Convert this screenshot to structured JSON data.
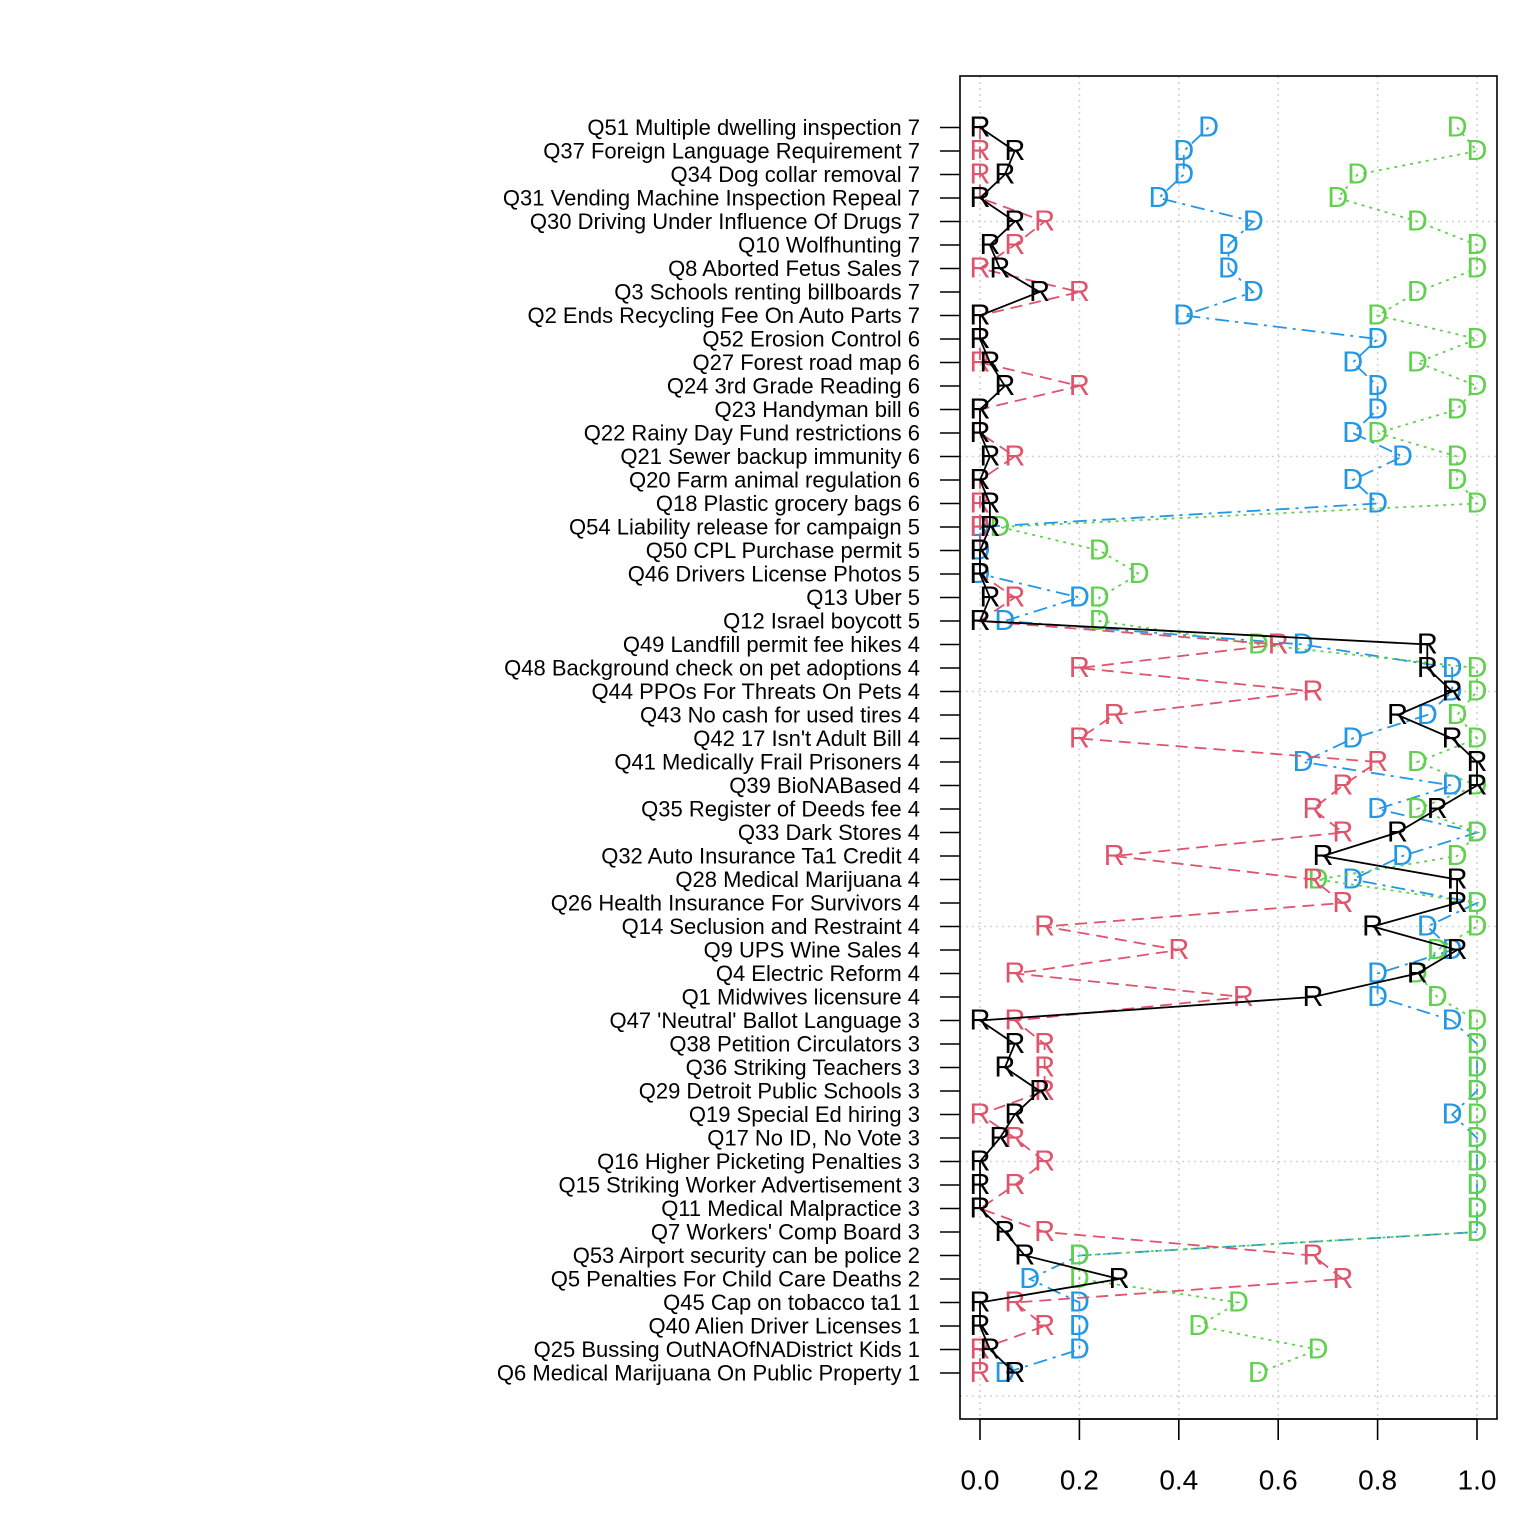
{
  "chart_data": {
    "type": "line",
    "title": "",
    "xlabel": "",
    "ylabel": "",
    "xlim": [
      0,
      1
    ],
    "x_ticks": [
      "0.0",
      "0.2",
      "0.4",
      "0.6",
      "0.8",
      "1.0"
    ],
    "grid": true,
    "legend": "none",
    "categories": [
      "Q51 Multiple dwelling inspection 7",
      "Q37 Foreign Language Requirement 7",
      "Q34 Dog collar removal 7",
      "Q31 Vending Machine Inspection Repeal 7",
      "Q30 Driving Under Influence Of Drugs 7",
      "Q10 Wolfhunting 7",
      "Q8 Aborted Fetus Sales 7",
      "Q3 Schools renting billboards 7",
      "Q2 Ends Recycling Fee On Auto Parts 7",
      "Q52 Erosion Control 6",
      "Q27 Forest road map 6",
      "Q24 3rd Grade Reading 6",
      "Q23 Handyman bill 6",
      "Q22 Rainy Day Fund restrictions 6",
      "Q21 Sewer backup immunity 6",
      "Q20 Farm animal regulation 6",
      "Q18 Plastic grocery bags 6",
      "Q54 Liability release for campaign 5",
      "Q50 CPL Purchase permit 5",
      "Q46 Drivers License Photos 5",
      "Q13 Uber 5",
      "Q12 Israel boycott 5",
      "Q49 Landfill permit fee hikes 4",
      "Q48 Background check on pet adoptions 4",
      "Q44 PPOs For Threats On Pets 4",
      "Q43 No cash for used tires 4",
      "Q42 17 Isn't Adult Bill 4",
      "Q41 Medically Frail Prisoners 4",
      "Q39 BioNABased 4",
      "Q35 Register of Deeds fee 4",
      "Q33 Dark Stores 4",
      "Q32 Auto Insurance Ta1 Credit 4",
      "Q28 Medical Marijuana 4",
      "Q26 Health Insurance For Survivors 4",
      "Q14 Seclusion and Restraint 4",
      "Q9 UPS Wine Sales 4",
      "Q4 Electric Reform 4",
      "Q1 Midwives licensure 4",
      "Q47 'Neutral' Ballot Language 3",
      "Q38 Petition Circulators 3",
      "Q36 Striking Teachers 3",
      "Q29 Detroit Public Schools 3",
      "Q19 Special Ed hiring 3",
      "Q17 No ID, No Vote 3",
      "Q16 Higher Picketing Penalties 3",
      "Q15 Striking Worker Advertisement 3",
      "Q11 Medical Malpractice 3",
      "Q7 Workers' Comp Board 3",
      "Q53 Airport security can be police 2",
      "Q5 Penalties For Child Care Deaths 2",
      "Q45 Cap on tobacco ta1 1",
      "Q40 Alien Driver Licenses 1",
      "Q25 Bussing OutNAOfNADistrict Kids 1",
      "Q6 Medical Marijuana On Public Property 1"
    ],
    "series": [
      {
        "marker": "R",
        "color": "#000000",
        "line": "solid",
        "values": [
          0,
          0.07,
          0.05,
          0,
          0.07,
          0.02,
          0.04,
          0.12,
          0,
          0,
          0.02,
          0.05,
          0,
          0,
          0.02,
          0,
          0.02,
          0.02,
          0,
          0,
          0.02,
          0,
          0.9,
          0.9,
          0.95,
          0.84,
          0.95,
          1.0,
          1.0,
          0.92,
          0.84,
          0.69,
          0.96,
          0.96,
          0.79,
          0.96,
          0.88,
          0.67,
          0,
          0.07,
          0.05,
          0.12,
          0.07,
          0.04,
          0,
          0,
          0,
          0.05,
          0.09,
          0.28,
          0,
          0,
          0.02,
          0.07
        ]
      },
      {
        "marker": "R",
        "color": "#DF536B",
        "line": "dashed",
        "values": [
          0,
          0,
          0,
          0,
          0.13,
          0.07,
          0,
          0.2,
          0,
          0,
          0,
          0.2,
          0,
          0,
          0.07,
          0,
          0,
          0,
          0,
          0,
          0.07,
          0,
          0.6,
          0.2,
          0.67,
          0.27,
          0.2,
          0.8,
          0.73,
          0.67,
          0.73,
          0.27,
          0.67,
          0.73,
          0.13,
          0.4,
          0.07,
          0.53,
          0.07,
          0.13,
          0.13,
          0.13,
          0,
          0.07,
          0.13,
          0.07,
          0,
          0.13,
          0.67,
          0.73,
          0.07,
          0.13,
          0,
          0
        ]
      },
      {
        "marker": "D",
        "color": "#2297E6",
        "line": "dotdash",
        "values": [
          0.46,
          0.41,
          0.41,
          0.36,
          0.55,
          0.5,
          0.5,
          0.55,
          0.41,
          0.8,
          0.75,
          0.8,
          0.8,
          0.75,
          0.85,
          0.75,
          0.8,
          0,
          0,
          0,
          0.2,
          0.05,
          0.65,
          0.95,
          0.95,
          0.9,
          0.75,
          0.65,
          0.95,
          0.8,
          1.0,
          0.85,
          0.75,
          1.0,
          0.9,
          0.95,
          0.8,
          0.8,
          0.95,
          1.0,
          1.0,
          1.0,
          0.95,
          1.0,
          1.0,
          1.0,
          1.0,
          1.0,
          0.2,
          0.1,
          0.2,
          0.2,
          0.2,
          0.05
        ]
      },
      {
        "marker": "D",
        "color": "#61D04F",
        "line": "dotted",
        "values": [
          0.96,
          1.0,
          0.76,
          0.72,
          0.88,
          1.0,
          1.0,
          0.88,
          0.8,
          1.0,
          0.88,
          1.0,
          0.96,
          0.8,
          0.96,
          0.96,
          1.0,
          0.04,
          0.24,
          0.32,
          0.24,
          0.24,
          0.56,
          1.0,
          1.0,
          0.96,
          1.0,
          0.88,
          1.0,
          0.88,
          1.0,
          0.96,
          0.68,
          1.0,
          1.0,
          0.92,
          0.88,
          0.92,
          1.0,
          1.0,
          1.0,
          1.0,
          1.0,
          1.0,
          1.0,
          1.0,
          1.0,
          1.0,
          0.2,
          0.2,
          0.52,
          0.44,
          0.68,
          0.56
        ]
      }
    ]
  }
}
